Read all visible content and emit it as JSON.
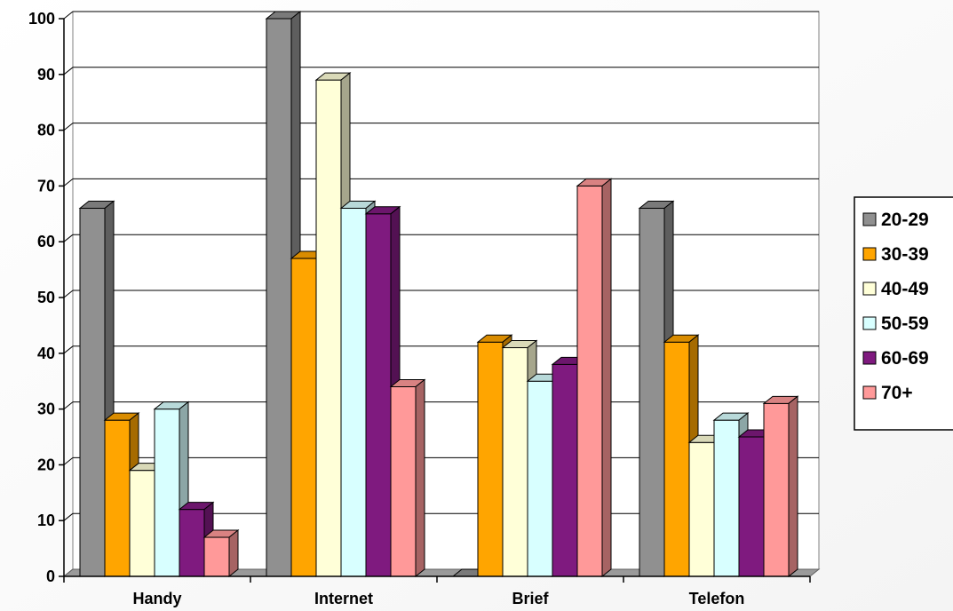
{
  "chart_data": {
    "type": "bar",
    "title": "",
    "xlabel": "",
    "ylabel": "",
    "ylim": [
      0,
      100
    ],
    "yticks": [
      0,
      10,
      20,
      30,
      40,
      50,
      60,
      70,
      80,
      90,
      100
    ],
    "grid": true,
    "legend_position": "right",
    "categories": [
      "Handy",
      "Internet",
      "Brief",
      "Telefon"
    ],
    "series": [
      {
        "name": "20-29",
        "color": "#909090",
        "values": [
          66,
          100,
          0,
          66
        ]
      },
      {
        "name": "30-39",
        "color": "#FFA500",
        "values": [
          28,
          57,
          42,
          42
        ]
      },
      {
        "name": "40-49",
        "color": "#FFFFD8",
        "values": [
          19,
          89,
          41,
          24
        ]
      },
      {
        "name": "50-59",
        "color": "#D8FFFF",
        "values": [
          30,
          66,
          35,
          28
        ]
      },
      {
        "name": "60-69",
        "color": "#7F1A7F",
        "values": [
          12,
          65,
          38,
          25
        ]
      },
      {
        "name": "70+",
        "color": "#FF9999",
        "values": [
          7,
          34,
          70,
          31
        ]
      }
    ]
  }
}
